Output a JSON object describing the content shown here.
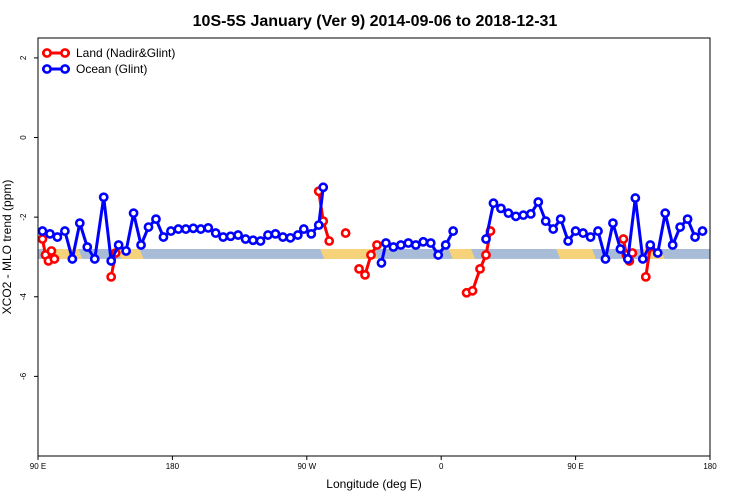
{
  "chart_data": {
    "type": "line",
    "title": "10S-5S January (Ver 9)   2014-09-06 to 2018-12-31",
    "xlabel": "Longitude (deg E)",
    "ylabel": "XCO2 - MLO trend (ppm)",
    "xlim": [
      90,
      540
    ],
    "ylim": [
      -8,
      2.5
    ],
    "grid": false,
    "legend_position": "top-left",
    "x_ticks": [
      {
        "value": 90,
        "label": "90 E"
      },
      {
        "value": 180,
        "label": "180"
      },
      {
        "value": 270,
        "label": "90 W"
      },
      {
        "value": 360,
        "label": "0"
      },
      {
        "value": 450,
        "label": "90 E"
      },
      {
        "value": 540,
        "label": "180"
      }
    ],
    "y_ticks": [
      {
        "value": 2,
        "label": "2"
      },
      {
        "value": 0,
        "label": "0"
      },
      {
        "value": -2,
        "label": "-2"
      },
      {
        "value": -4,
        "label": "-4"
      },
      {
        "value": -6,
        "label": "-6"
      }
    ],
    "surface_band": {
      "y_range": [
        -3.05,
        -2.8
      ],
      "ocean_color": "#a8bcd8",
      "land_color": "#f6d27a",
      "land_segments": [
        [
          95,
          117
        ],
        [
          143,
          158
        ],
        [
          279,
          315
        ],
        [
          365,
          380
        ],
        [
          437,
          461
        ],
        [
          494,
          507
        ]
      ]
    },
    "series": [
      {
        "name": "Land (Nadir&Glint)",
        "color": "#ff0000",
        "segments": [
          [
            [
              93,
              -2.55
            ],
            [
              95,
              -2.95
            ],
            [
              97,
              -3.1
            ],
            [
              99,
              -2.85
            ],
            [
              101,
              -3.05
            ]
          ],
          [
            [
              139,
              -3.5
            ],
            [
              142,
              -2.9
            ]
          ],
          [
            [
              278,
              -1.35
            ],
            [
              281,
              -2.1
            ],
            [
              285,
              -2.6
            ]
          ],
          [
            [
              296,
              -2.4
            ]
          ],
          [
            [
              305,
              -3.3
            ],
            [
              309,
              -3.45
            ],
            [
              313,
              -2.95
            ],
            [
              317,
              -2.7
            ]
          ],
          [
            [
              377,
              -3.9
            ],
            [
              381,
              -3.85
            ],
            [
              386,
              -3.3
            ],
            [
              390,
              -2.95
            ],
            [
              393,
              -2.35
            ]
          ],
          [
            [
              482,
              -2.55
            ],
            [
              484,
              -2.95
            ],
            [
              486,
              -3.1
            ],
            [
              488,
              -2.9
            ]
          ],
          [
            [
              497,
              -3.5
            ],
            [
              500,
              -2.75
            ]
          ]
        ]
      },
      {
        "name": "Ocean (Glint)",
        "color": "#0000ff",
        "segments": [
          [
            [
              93,
              -2.35
            ],
            [
              98,
              -2.42
            ],
            [
              103,
              -2.5
            ],
            [
              108,
              -2.35
            ],
            [
              113,
              -3.05
            ],
            [
              118,
              -2.15
            ],
            [
              123,
              -2.75
            ],
            [
              128,
              -3.05
            ],
            [
              134,
              -1.5
            ],
            [
              139,
              -3.1
            ],
            [
              144,
              -2.7
            ],
            [
              149,
              -2.85
            ],
            [
              154,
              -1.9
            ],
            [
              159,
              -2.7
            ],
            [
              164,
              -2.25
            ],
            [
              169,
              -2.05
            ],
            [
              174,
              -2.5
            ],
            [
              179,
              -2.35
            ],
            [
              184,
              -2.3
            ],
            [
              189,
              -2.3
            ],
            [
              194,
              -2.28
            ],
            [
              199,
              -2.3
            ],
            [
              204,
              -2.27
            ],
            [
              209,
              -2.4
            ],
            [
              214,
              -2.5
            ],
            [
              219,
              -2.48
            ],
            [
              224,
              -2.45
            ],
            [
              229,
              -2.55
            ],
            [
              234,
              -2.58
            ],
            [
              239,
              -2.6
            ],
            [
              244,
              -2.45
            ],
            [
              249,
              -2.42
            ],
            [
              254,
              -2.5
            ],
            [
              259,
              -2.52
            ],
            [
              264,
              -2.45
            ],
            [
              268,
              -2.3
            ],
            [
              273,
              -2.42
            ],
            [
              278,
              -2.2
            ],
            [
              281,
              -1.25
            ]
          ],
          [
            [
              320,
              -3.15
            ],
            [
              323,
              -2.65
            ],
            [
              328,
              -2.75
            ],
            [
              333,
              -2.7
            ],
            [
              338,
              -2.65
            ],
            [
              343,
              -2.7
            ],
            [
              348,
              -2.62
            ],
            [
              353,
              -2.65
            ],
            [
              358,
              -2.95
            ],
            [
              363,
              -2.7
            ],
            [
              368,
              -2.35
            ]
          ],
          [
            [
              390,
              -2.55
            ],
            [
              395,
              -1.65
            ],
            [
              400,
              -1.78
            ],
            [
              405,
              -1.9
            ],
            [
              410,
              -1.98
            ],
            [
              415,
              -1.95
            ],
            [
              420,
              -1.92
            ],
            [
              425,
              -1.62
            ],
            [
              430,
              -2.1
            ],
            [
              435,
              -2.3
            ],
            [
              440,
              -2.05
            ],
            [
              445,
              -2.6
            ],
            [
              450,
              -2.35
            ],
            [
              455,
              -2.4
            ],
            [
              460,
              -2.5
            ],
            [
              465,
              -2.35
            ],
            [
              470,
              -3.05
            ],
            [
              475,
              -2.15
            ],
            [
              480,
              -2.8
            ],
            [
              485,
              -3.05
            ],
            [
              490,
              -1.52
            ],
            [
              495,
              -3.05
            ],
            [
              500,
              -2.7
            ],
            [
              505,
              -2.9
            ],
            [
              510,
              -1.9
            ],
            [
              515,
              -2.7
            ],
            [
              520,
              -2.25
            ],
            [
              525,
              -2.05
            ],
            [
              530,
              -2.5
            ],
            [
              535,
              -2.35
            ]
          ]
        ]
      }
    ]
  }
}
